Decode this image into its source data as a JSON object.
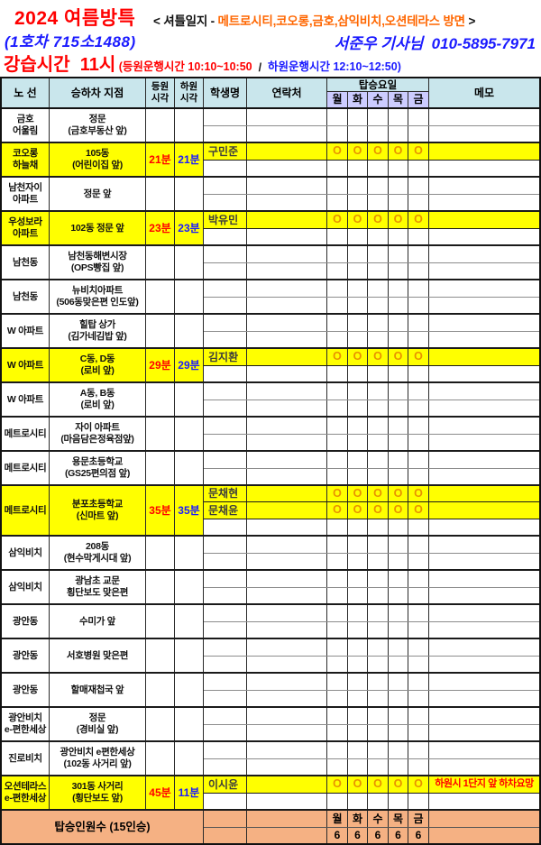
{
  "header": {
    "season_title": "2024 여름방특",
    "log_prefix": "< 셔틀일지 - ",
    "log_destinations": "메트로시티,코오롱,금호,삼익비치,오션테라스 방면",
    "log_suffix": " >",
    "bus_label": "(1호차 715소1488)",
    "driver_label": "서준우 기사님  010-5895-7971",
    "lesson_time": "강습시간  11시",
    "pickup_window": " (등원운행시간 10:10~10:50",
    "window_separator": "  /  ",
    "dropoff_window": "하원운행시간 12:10~12:50)"
  },
  "table": {
    "headers": {
      "route": "노 선",
      "stop": "승하차 지점",
      "pickup": "등원\n시각",
      "dropoff": "하원\n시각",
      "student": "학생명",
      "contact": "연락처",
      "days_group": "탑승요일",
      "memo": "메모"
    },
    "day_headers": [
      "월",
      "화",
      "수",
      "목",
      "금"
    ],
    "rows": [
      {
        "route": "금호\n어울림",
        "stop": "정문\n(금호부동산 앞)",
        "pickup": "",
        "dropoff": "",
        "hl": false,
        "sub": [
          {},
          {}
        ]
      },
      {
        "route": "코오롱\n하늘채",
        "stop": "105동\n(어린이집 앞)",
        "pickup": "21분",
        "dropoff": "21분",
        "hl": true,
        "sub": [
          {
            "name": "구민준",
            "days": [
              "O",
              "O",
              "O",
              "O",
              "O"
            ],
            "hl": true
          },
          {}
        ]
      },
      {
        "route": "남천자이\n아파트",
        "stop": "정문 앞",
        "pickup": "",
        "dropoff": "",
        "hl": false,
        "sub": [
          {},
          {}
        ]
      },
      {
        "route": "우성보라\n아파트",
        "stop": "102동 정문 앞",
        "pickup": "23분",
        "dropoff": "23분",
        "hl": true,
        "sub": [
          {
            "name": "박유민",
            "days": [
              "O",
              "O",
              "O",
              "O",
              "O"
            ],
            "hl": true
          },
          {}
        ]
      },
      {
        "route": "남천동",
        "stop": "남천동해변시장\n(OPS빵집 앞)",
        "pickup": "",
        "dropoff": "",
        "hl": false,
        "sub": [
          {},
          {}
        ]
      },
      {
        "route": "남천동",
        "stop": "뉴비치아파트\n(506동맞은편 인도앞)",
        "pickup": "",
        "dropoff": "",
        "hl": false,
        "sub": [
          {},
          {}
        ]
      },
      {
        "route": "W 아파트",
        "stop": "힐탑 상가\n(김가네김밥 앞)",
        "pickup": "",
        "dropoff": "",
        "hl": false,
        "sub": [
          {},
          {}
        ]
      },
      {
        "route": "W 아파트",
        "stop": "C동, D동\n(로비 앞)",
        "pickup": "29분",
        "dropoff": "29분",
        "hl": true,
        "sub": [
          {
            "name": "김지환",
            "days": [
              "O",
              "O",
              "O",
              "O",
              "O"
            ],
            "hl": true
          },
          {}
        ]
      },
      {
        "route": "W 아파트",
        "stop": "A동, B동\n(로비 앞)",
        "pickup": "",
        "dropoff": "",
        "hl": false,
        "sub": [
          {},
          {}
        ]
      },
      {
        "route": "메트로시티",
        "stop": "자이 아파트\n(마음담은정육점앞)",
        "pickup": "",
        "dropoff": "",
        "hl": false,
        "sub": [
          {},
          {}
        ]
      },
      {
        "route": "메트로시티",
        "stop": "용문초등학교\n(GS25편의점 앞)",
        "pickup": "",
        "dropoff": "",
        "hl": false,
        "sub": [
          {},
          {}
        ]
      },
      {
        "route": "메트로시티",
        "stop": "분포초등학교\n(신마트 앞)",
        "pickup": "35분",
        "dropoff": "35분",
        "hl": true,
        "sub": [
          {
            "name": "문채현",
            "days": [
              "O",
              "O",
              "O",
              "O",
              "O"
            ],
            "hl": true
          },
          {
            "name": "문채윤",
            "days": [
              "O",
              "O",
              "O",
              "O",
              "O"
            ],
            "hl": true
          },
          {}
        ]
      },
      {
        "route": "삼익비치",
        "stop": "208동\n(현수막게시대 앞)",
        "pickup": "",
        "dropoff": "",
        "hl": false,
        "sub": [
          {},
          {}
        ]
      },
      {
        "route": "삼익비치",
        "stop": "광남초 교문\n횡단보도 맞은편",
        "pickup": "",
        "dropoff": "",
        "hl": false,
        "sub": [
          {},
          {}
        ]
      },
      {
        "route": "광안동",
        "stop": "수미가 앞",
        "pickup": "",
        "dropoff": "",
        "hl": false,
        "sub": [
          {},
          {}
        ]
      },
      {
        "route": "광안동",
        "stop": "서호병원 맞은편",
        "pickup": "",
        "dropoff": "",
        "hl": false,
        "sub": [
          {},
          {}
        ]
      },
      {
        "route": "광안동",
        "stop": "할매재첩국 앞",
        "pickup": "",
        "dropoff": "",
        "hl": false,
        "sub": [
          {},
          {}
        ]
      },
      {
        "route": "광안비치\ne-편한세상",
        "stop": "정문\n(경비실 앞)",
        "pickup": "",
        "dropoff": "",
        "hl": false,
        "sub": [
          {},
          {}
        ]
      },
      {
        "route": "진로비치",
        "stop": "광안비치 e편한세상\n(102동 사거리 앞)",
        "pickup": "",
        "dropoff": "",
        "hl": false,
        "sub": [
          {},
          {}
        ]
      },
      {
        "route": "오션테라스\ne-편한세상",
        "stop": "301동 사거리\n(횡단보도 앞)",
        "pickup": "45분",
        "dropoff": "11분",
        "hl": true,
        "sub": [
          {
            "name": "이시윤",
            "days": [
              "O",
              "O",
              "O",
              "O",
              "O"
            ],
            "memo": "하원시 1단지 앞 하차요망",
            "memo_red": true,
            "hl": true
          },
          {}
        ]
      }
    ],
    "footer": {
      "label": "탑승인원수 (15인승)",
      "day_headers": [
        "월",
        "화",
        "수",
        "목",
        "금"
      ],
      "counts": [
        "6",
        "6",
        "6",
        "6",
        "6"
      ]
    }
  },
  "colors": {
    "highlight_yellow": "#FFFF00",
    "header_cyan": "#C9E6EC",
    "day_header_lavender": "#CCCCFF",
    "footer_orange": "#F5B183",
    "pickup_red": "#FF0000",
    "dropoff_blue": "#1A1AFF",
    "destination_orange": "#FF6600",
    "attendance_mark_orange": "#E89200"
  }
}
